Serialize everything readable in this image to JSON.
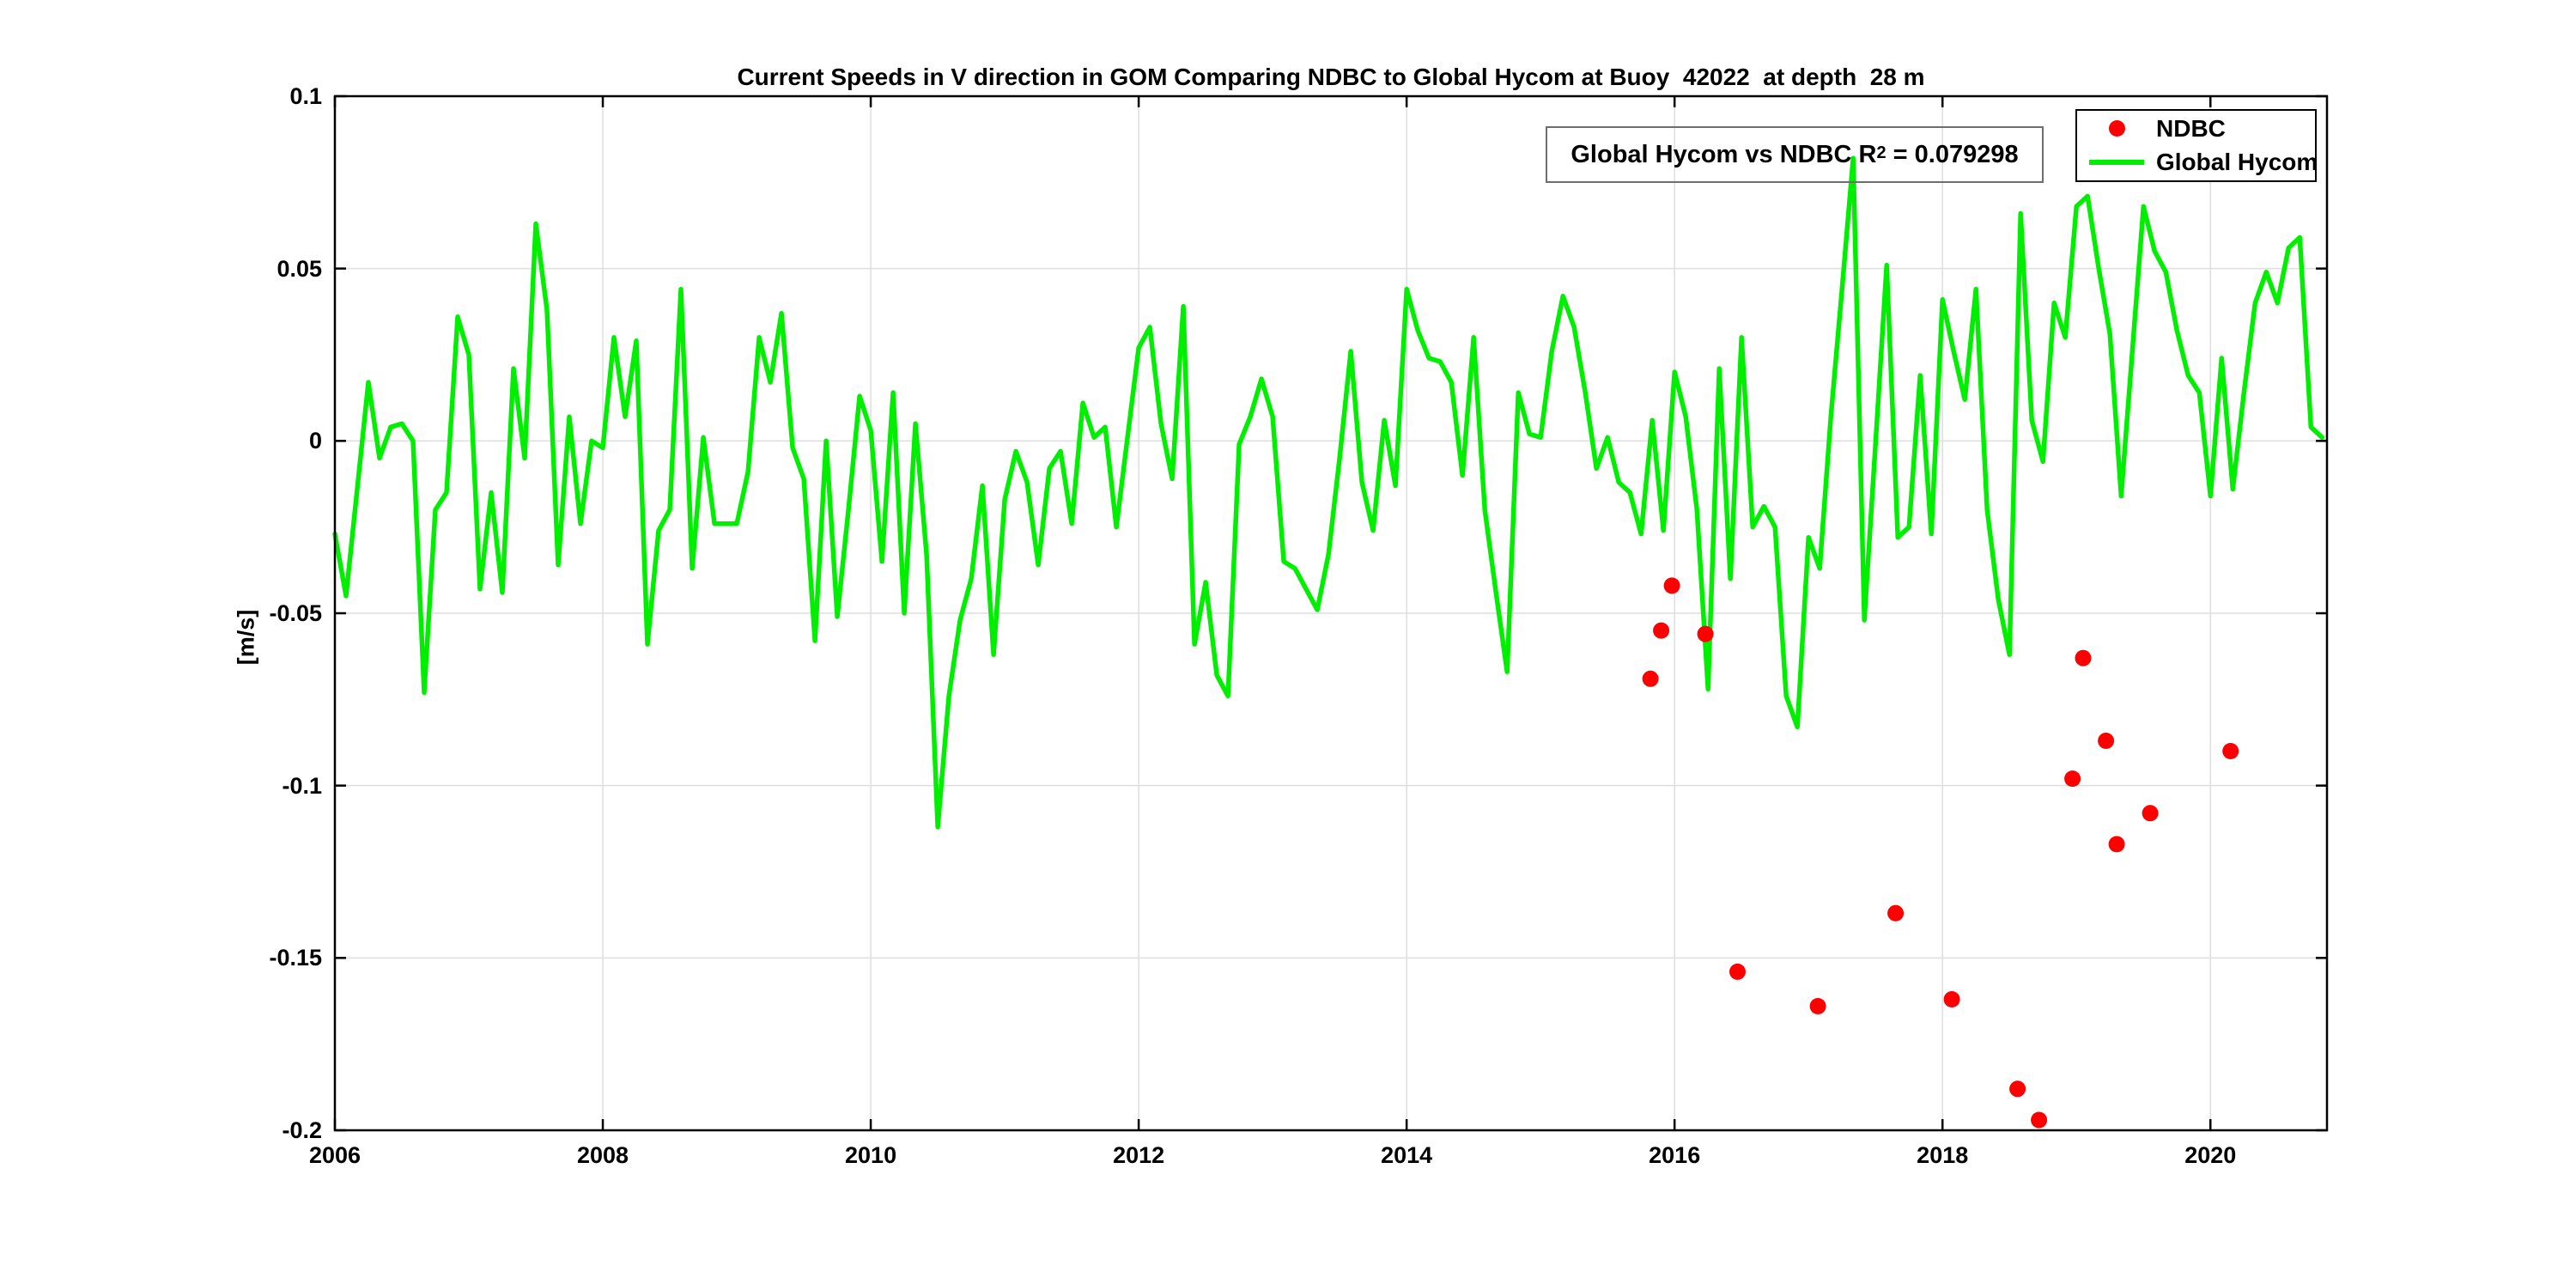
{
  "chart_data": {
    "type": "line+scatter",
    "title": "Current Speeds in V direction in GOM Comparing NDBC to Global Hycom at Buoy  42022  at depth  28 m",
    "ylabel": "[m/s]",
    "xlim": [
      2006,
      2020.87
    ],
    "ylim": [
      -0.2,
      0.1
    ],
    "grid": true,
    "xticks": [
      2006,
      2008,
      2010,
      2012,
      2014,
      2016,
      2018,
      2020
    ],
    "xtick_labels": [
      "2006",
      "2008",
      "2010",
      "2012",
      "2014",
      "2016",
      "2018",
      "2020"
    ],
    "yticks": [
      0.1,
      0.05,
      0,
      -0.05,
      -0.1,
      -0.15,
      -0.2
    ],
    "ytick_labels": [
      "0.1",
      "0.05",
      "0",
      "-0.05",
      "-0.1",
      "-0.15",
      "-0.2"
    ],
    "legend_position": "top-right",
    "annotation": {
      "prefix": "Global Hycom vs NDBC R",
      "sup": "2",
      "suffix": " = 0.079298",
      "r_squared": 0.079298
    },
    "series": [
      {
        "name": "NDBC",
        "type": "scatter",
        "color": "#ff0000",
        "marker_radius": 9.5,
        "points": [
          [
            2015.82,
            -0.069
          ],
          [
            2015.9,
            -0.055
          ],
          [
            2015.98,
            -0.042
          ],
          [
            2016.23,
            -0.056
          ],
          [
            2016.47,
            -0.154
          ],
          [
            2017.07,
            -0.164
          ],
          [
            2017.65,
            -0.137
          ],
          [
            2018.07,
            -0.162
          ],
          [
            2018.56,
            -0.188
          ],
          [
            2018.72,
            -0.197
          ],
          [
            2018.97,
            -0.098
          ],
          [
            2019.05,
            -0.063
          ],
          [
            2019.22,
            -0.087
          ],
          [
            2019.3,
            -0.117
          ],
          [
            2019.55,
            -0.108
          ],
          [
            2020.15,
            -0.09
          ]
        ]
      },
      {
        "name": "Global Hycom",
        "type": "line",
        "color": "#00ef00",
        "line_width": 5.5,
        "x_start": 2006,
        "x_step_years": 0.0833333,
        "values": [
          -0.027,
          -0.045,
          -0.014,
          0.017,
          -0.005,
          0.004,
          0.005,
          0.0,
          -0.073,
          -0.02,
          -0.015,
          0.036,
          0.025,
          -0.043,
          -0.015,
          -0.044,
          0.021,
          -0.005,
          0.063,
          0.038,
          -0.036,
          0.007,
          -0.024,
          0.0,
          -0.002,
          0.03,
          0.007,
          0.029,
          -0.059,
          -0.026,
          -0.02,
          0.044,
          -0.037,
          0.001,
          -0.024,
          -0.024,
          -0.024,
          -0.009,
          0.03,
          0.017,
          0.037,
          -0.002,
          -0.011,
          -0.058,
          0.0,
          -0.051,
          -0.02,
          0.013,
          0.003,
          -0.035,
          0.014,
          -0.05,
          0.005,
          -0.033,
          -0.112,
          -0.074,
          -0.052,
          -0.04,
          -0.013,
          -0.062,
          -0.017,
          -0.003,
          -0.012,
          -0.036,
          -0.008,
          -0.003,
          -0.024,
          0.011,
          0.001,
          0.004,
          -0.025,
          0.001,
          0.027,
          0.033,
          0.005,
          -0.011,
          0.039,
          -0.059,
          -0.041,
          -0.068,
          -0.074,
          -0.001,
          0.007,
          0.018,
          0.007,
          -0.035,
          -0.037,
          -0.043,
          -0.049,
          -0.033,
          -0.005,
          0.026,
          -0.012,
          -0.026,
          0.006,
          -0.013,
          0.044,
          0.032,
          0.024,
          0.023,
          0.017,
          -0.01,
          0.03,
          -0.02,
          -0.044,
          -0.067,
          0.014,
          0.002,
          0.001,
          0.026,
          0.042,
          0.033,
          0.014,
          -0.008,
          0.001,
          -0.012,
          -0.015,
          -0.027,
          0.006,
          -0.026,
          0.02,
          0.007,
          -0.02,
          -0.072,
          0.021,
          -0.04,
          0.03,
          -0.025,
          -0.019,
          -0.025,
          -0.074,
          -0.083,
          -0.028,
          -0.037,
          0.007,
          0.044,
          0.082,
          -0.052,
          -0.001,
          0.051,
          -0.028,
          -0.025,
          0.019,
          -0.027,
          0.041,
          0.026,
          0.012,
          0.044,
          -0.02,
          -0.046,
          -0.062,
          0.066,
          0.006,
          -0.006,
          0.04,
          0.03,
          0.068,
          0.071,
          0.05,
          0.031,
          -0.016,
          0.026,
          0.068,
          0.055,
          0.049,
          0.032,
          0.019,
          0.014,
          -0.016,
          0.024,
          -0.014,
          0.014,
          0.04,
          0.049,
          0.04,
          0.056,
          0.059,
          0.004,
          0.001
        ]
      }
    ]
  }
}
